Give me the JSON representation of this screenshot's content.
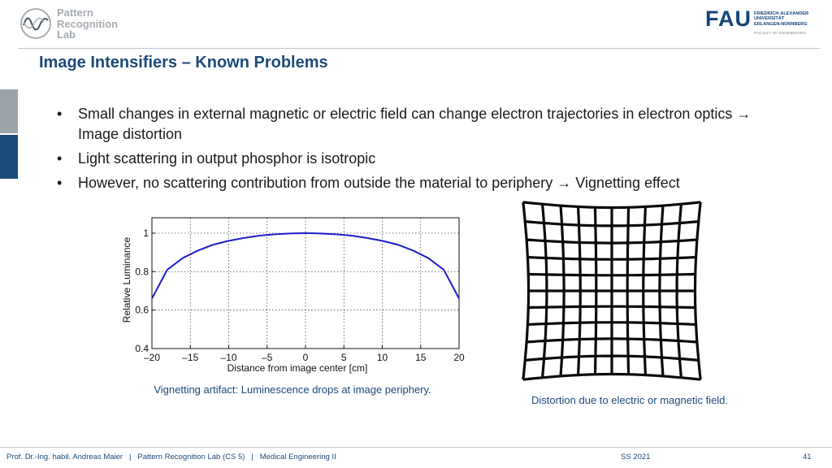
{
  "header": {
    "lab_logo_lines": [
      "Pattern",
      "Recognition",
      "Lab"
    ],
    "fau_logo": "FAU",
    "fau_name_lines": [
      "FRIEDRICH-ALEXANDER",
      "UNIVERSITÄT",
      "ERLANGEN-NÜRNBERG"
    ],
    "fau_faculty": "FACULTY OF ENGINEERING"
  },
  "slide": {
    "title": "Image Intensifiers – Known Problems",
    "bullets": [
      "Small changes in external magnetic or electric field can change electron trajectories in electron optics → Image distortion",
      "Light scattering in output phosphor is isotropic",
      "However, no scattering contribution from outside the material to periphery → Vignetting effect"
    ],
    "chart_caption": "Vignetting artifact: Luminescence drops at image periphery.",
    "grid_caption": "Distortion due to electric or magnetic field."
  },
  "chart_data": {
    "type": "line",
    "xlabel": "Distance from image center [cm]",
    "ylabel": "Relative Luminance",
    "xlim": [
      -20,
      20
    ],
    "ylim": [
      0.4,
      1.08
    ],
    "xticks": [
      -20,
      -15,
      -10,
      -5,
      0,
      5,
      10,
      15,
      20
    ],
    "xtick_labels": [
      "–20",
      "–15",
      "–10",
      "–5",
      "0",
      "5",
      "10",
      "15",
      "20"
    ],
    "yticks": [
      0.4,
      0.6,
      0.8,
      1
    ],
    "ytick_labels": [
      "0.4",
      "0.6",
      "0.8",
      "1"
    ],
    "grid": true,
    "line_color": "#1f1fc8",
    "series": [
      {
        "x": [
          -20,
          -18,
          -16,
          -14,
          -12,
          -10,
          -8,
          -6,
          -4,
          -2,
          0,
          2,
          4,
          6,
          8,
          10,
          12,
          14,
          16,
          18,
          20
        ],
        "values": [
          0.66,
          0.81,
          0.87,
          0.91,
          0.94,
          0.96,
          0.975,
          0.987,
          0.994,
          0.998,
          1.0,
          0.998,
          0.994,
          0.987,
          0.975,
          0.96,
          0.94,
          0.91,
          0.87,
          0.81,
          0.66
        ]
      }
    ]
  },
  "footer": {
    "left": "Prof. Dr.-Ing. habil. Andreas Maier   |   Pattern Recognition Lab (CS 5)   |   Medical Engineering II",
    "semester": "SS 2021",
    "page": "41"
  }
}
